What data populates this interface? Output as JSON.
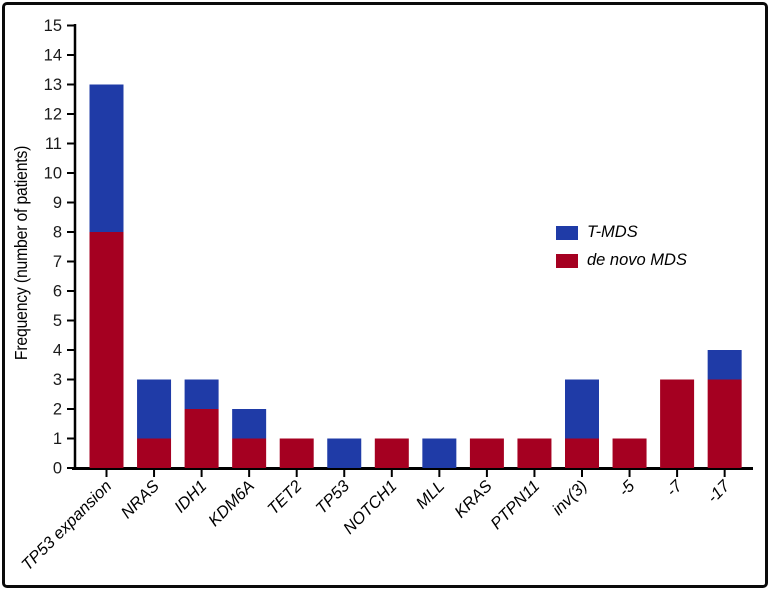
{
  "figure": {
    "background_color": "#ffffff",
    "frame_color": "#0a0a0a"
  },
  "chart_data": {
    "type": "bar",
    "stacked": true,
    "title": "",
    "xlabel": "",
    "ylabel": "Frequency (number of patients)",
    "ylim": [
      0,
      15
    ],
    "ytick_step": 1,
    "grid": false,
    "legend_position": "center-right",
    "categories": [
      "TP53 expansion",
      "NRAS",
      "IDH1",
      "KDM6A",
      "TET2",
      "TP53",
      "NOTCH1",
      "MLL",
      "KRAS",
      "PTPN11",
      "inv(3)",
      "-5",
      "-7",
      "-17"
    ],
    "series": [
      {
        "name": "T-MDS",
        "color": "#1f3ba7",
        "stack": "top",
        "values": [
          5,
          2,
          1,
          1,
          0,
          1,
          0,
          1,
          0,
          0,
          2,
          0,
          0,
          1
        ]
      },
      {
        "name": "de novo MDS",
        "color": "#a50021",
        "stack": "bottom",
        "values": [
          8,
          1,
          2,
          1,
          1,
          0,
          1,
          0,
          1,
          1,
          1,
          1,
          3,
          3
        ]
      }
    ],
    "totals": [
      13,
      3,
      3,
      2,
      1,
      1,
      1,
      1,
      1,
      1,
      3,
      1,
      3,
      4
    ],
    "axis_color": "#000000",
    "tick_label_color": "#1a1a1a"
  }
}
